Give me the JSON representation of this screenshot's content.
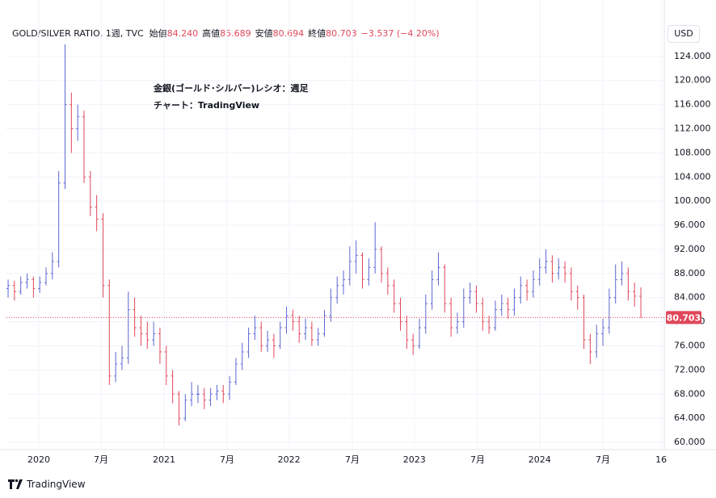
{
  "header": {
    "symbol": "GOLD/SILVER RATIO, 1週, TVC",
    "fields": [
      {
        "label": "始値",
        "value": "84.240"
      },
      {
        "label": "高値",
        "value": "85.689"
      },
      {
        "label": "安値",
        "value": "80.694"
      },
      {
        "label": "終値",
        "value": "80.703"
      }
    ],
    "change": "−3.537 (−4.20%)",
    "currency": "USD",
    "brand": "TradingView"
  },
  "chart_data": {
    "type": "ohlc",
    "annotations": [
      "金銀(ゴールド･シルバー)レシオ：週足",
      "チャート：TradingView"
    ],
    "up_color": "#5c67d1",
    "down_color": "#e0475a",
    "grid": true,
    "last_label": "80.703",
    "ylim": [
      58.8,
      129.6
    ],
    "yticks": [
      {
        "value": 60,
        "label": "60.000"
      },
      {
        "value": 64,
        "label": "64.000"
      },
      {
        "value": 68,
        "label": "68.000"
      },
      {
        "value": 72,
        "label": "72.000"
      },
      {
        "value": 76,
        "label": "76.000"
      },
      {
        "value": 80,
        "label": "80.000"
      },
      {
        "value": 84,
        "label": "84.000"
      },
      {
        "value": 88,
        "label": "88.000"
      },
      {
        "value": 92,
        "label": "92.000"
      },
      {
        "value": 96,
        "label": "96.000"
      },
      {
        "value": 100,
        "label": "100.000"
      },
      {
        "value": 104,
        "label": "104.000"
      },
      {
        "value": 108,
        "label": "108.000"
      },
      {
        "value": 112,
        "label": "112.000"
      },
      {
        "value": 116,
        "label": "116.000"
      },
      {
        "value": 120,
        "label": "120.000"
      },
      {
        "value": 124,
        "label": "124.000"
      }
    ],
    "xlim": [
      -0.26,
      103.7
    ],
    "xticks": [
      {
        "value": 4.85,
        "label": "2020"
      },
      {
        "value": 14.69,
        "label": "7月"
      },
      {
        "value": 24.65,
        "label": "2021"
      },
      {
        "value": 34.6,
        "label": "7月"
      },
      {
        "value": 44.4,
        "label": "2022"
      },
      {
        "value": 54.4,
        "label": "7月"
      },
      {
        "value": 64.2,
        "label": "2023"
      },
      {
        "value": 74.2,
        "label": "7月"
      },
      {
        "value": 84.0,
        "label": "2024"
      },
      {
        "value": 94.0,
        "label": "7月"
      },
      {
        "value": 103.2,
        "label": "16"
      }
    ],
    "ohlc": [
      [
        85.5,
        87,
        84,
        86
      ],
      [
        86,
        86.8,
        83.5,
        85
      ],
      [
        85,
        87.5,
        84.5,
        86.5
      ],
      [
        86.5,
        88,
        85.5,
        87
      ],
      [
        87,
        87.5,
        84,
        85.5
      ],
      [
        85.5,
        87.5,
        84.8,
        86.5
      ],
      [
        86.5,
        89,
        86,
        88
      ],
      [
        88,
        91.5,
        87,
        90
      ],
      [
        90,
        105,
        89,
        103
      ],
      [
        103,
        126,
        102,
        116
      ],
      [
        116,
        118,
        108,
        112
      ],
      [
        112,
        116,
        110,
        114
      ],
      [
        114,
        115,
        103,
        104
      ],
      [
        104,
        105,
        97.5,
        99
      ],
      [
        99,
        101,
        95,
        97
      ],
      [
        97,
        98,
        84,
        86
      ],
      [
        86,
        87,
        69.5,
        71
      ],
      [
        71,
        75,
        70,
        73
      ],
      [
        73,
        76,
        72,
        74
      ],
      [
        74,
        85,
        73,
        82
      ],
      [
        82,
        84,
        77.5,
        79
      ],
      [
        79,
        81,
        76,
        78
      ],
      [
        78,
        80,
        75.5,
        77
      ],
      [
        77,
        80,
        76,
        78
      ],
      [
        78,
        79,
        73,
        75
      ],
      [
        75,
        76,
        69.5,
        71
      ],
      [
        71,
        72,
        66.5,
        68
      ],
      [
        68,
        68.5,
        62.8,
        64
      ],
      [
        64,
        68,
        63.5,
        67
      ],
      [
        67,
        70,
        66,
        68
      ],
      [
        68,
        69.5,
        66.5,
        68
      ],
      [
        68,
        69,
        65.5,
        67
      ],
      [
        67,
        69,
        66,
        68
      ],
      [
        68,
        69.5,
        67,
        68.5
      ],
      [
        68.5,
        69.5,
        66.5,
        68
      ],
      [
        68,
        71,
        67,
        70
      ],
      [
        70,
        74,
        69.5,
        73
      ],
      [
        73,
        76.5,
        72,
        75
      ],
      [
        75,
        79,
        74,
        78
      ],
      [
        78,
        81,
        77,
        79
      ],
      [
        79,
        80,
        75,
        76
      ],
      [
        76,
        78.5,
        75,
        77
      ],
      [
        77,
        78,
        74,
        76
      ],
      [
        76,
        80,
        75.5,
        79
      ],
      [
        79,
        82.5,
        78,
        81
      ],
      [
        81,
        82,
        78.5,
        80
      ],
      [
        80,
        81,
        76.5,
        78
      ],
      [
        78,
        80.5,
        77,
        79
      ],
      [
        79,
        80,
        76,
        77
      ],
      [
        77,
        79,
        76,
        78
      ],
      [
        78,
        82,
        77.5,
        81
      ],
      [
        81,
        85.5,
        80,
        84
      ],
      [
        84,
        87.5,
        83,
        86
      ],
      [
        86,
        88.5,
        84.5,
        87
      ],
      [
        87,
        92.5,
        86,
        90
      ],
      [
        90,
        93.5,
        88,
        91
      ],
      [
        91,
        91.5,
        85.5,
        87
      ],
      [
        87,
        90.5,
        86,
        89
      ],
      [
        89,
        96.5,
        88,
        92
      ],
      [
        92,
        92.5,
        86.5,
        88
      ],
      [
        88,
        89,
        84.5,
        86
      ],
      [
        86,
        87,
        81.5,
        83
      ],
      [
        83,
        84,
        78.5,
        80
      ],
      [
        80,
        81,
        75.5,
        77
      ],
      [
        77,
        78,
        74.5,
        76
      ],
      [
        76,
        80.5,
        75.5,
        79
      ],
      [
        79,
        84.5,
        78,
        83
      ],
      [
        83,
        88.5,
        82,
        87
      ],
      [
        87,
        91.5,
        86,
        89
      ],
      [
        89,
        89.5,
        81.5,
        83
      ],
      [
        83,
        84,
        77.5,
        79
      ],
      [
        79,
        81.5,
        78,
        80
      ],
      [
        80,
        85.5,
        79,
        84
      ],
      [
        84,
        86.5,
        83,
        85
      ],
      [
        85,
        86,
        81.5,
        83
      ],
      [
        83,
        84,
        78.5,
        80
      ],
      [
        80,
        81,
        78,
        79
      ],
      [
        79,
        83.5,
        78.5,
        82
      ],
      [
        82,
        84.5,
        81,
        83
      ],
      [
        83,
        84,
        80.5,
        82
      ],
      [
        82,
        85.5,
        81,
        84
      ],
      [
        84,
        87.5,
        83,
        86
      ],
      [
        86,
        87,
        83.5,
        85
      ],
      [
        85,
        88.5,
        84,
        87
      ],
      [
        87,
        90.5,
        86,
        89
      ],
      [
        89,
        92,
        88,
        90
      ],
      [
        90,
        91,
        86.5,
        88
      ],
      [
        88,
        90.5,
        87,
        89
      ],
      [
        89,
        90,
        86.5,
        88
      ],
      [
        88,
        89,
        83.5,
        85
      ],
      [
        85,
        86,
        82,
        84
      ],
      [
        84,
        84.5,
        75.5,
        77
      ],
      [
        77,
        78,
        73,
        75
      ],
      [
        75,
        79.5,
        74,
        78
      ],
      [
        78,
        80.5,
        76,
        79
      ],
      [
        79,
        85.5,
        78,
        84
      ],
      [
        84,
        89.5,
        83,
        87
      ],
      [
        87,
        90,
        86,
        88
      ],
      [
        88,
        89,
        83.5,
        85
      ],
      [
        85,
        86.5,
        82.5,
        84.24
      ],
      [
        84.24,
        85.689,
        80.694,
        80.703
      ]
    ]
  }
}
